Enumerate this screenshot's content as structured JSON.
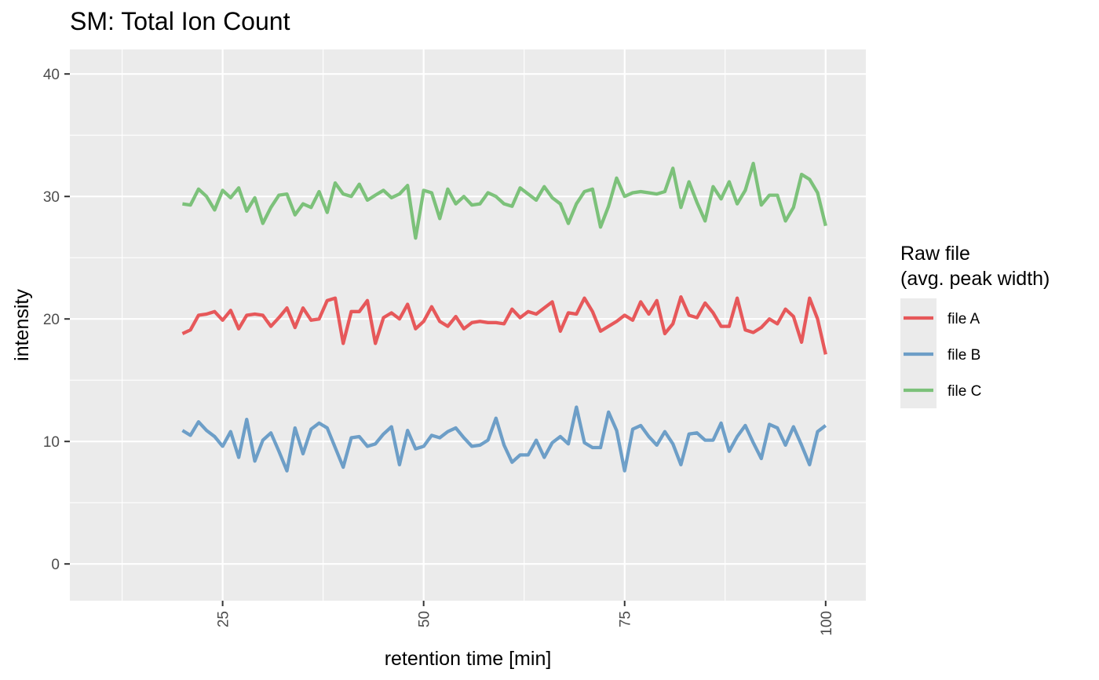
{
  "chart_data": {
    "type": "line",
    "title": "SM: Total Ion Count",
    "xlabel": "retention time [min]",
    "ylabel": "intensity",
    "xlim": [
      6,
      105
    ],
    "ylim": [
      -3,
      42
    ],
    "x_ticks": [
      25,
      50,
      75,
      100
    ],
    "x_tick_labels": [
      "25",
      "50",
      "75",
      "100"
    ],
    "y_ticks": [
      0,
      10,
      20,
      30,
      40
    ],
    "y_tick_labels": [
      "0",
      "10",
      "20",
      "30",
      "40"
    ],
    "grid": true,
    "legend": {
      "title_lines": [
        "Raw file",
        "(avg. peak width)"
      ],
      "position": "right"
    },
    "x": [
      20,
      21,
      22,
      23,
      24,
      25,
      26,
      27,
      28,
      29,
      30,
      31,
      32,
      33,
      34,
      35,
      36,
      37,
      38,
      39,
      40,
      41,
      42,
      43,
      44,
      45,
      46,
      47,
      48,
      49,
      50,
      51,
      52,
      53,
      54,
      55,
      56,
      57,
      58,
      59,
      60,
      61,
      62,
      63,
      64,
      65,
      66,
      67,
      68,
      69,
      70,
      71,
      72,
      73,
      74,
      75,
      76,
      77,
      78,
      79,
      80,
      81,
      82,
      83,
      84,
      85,
      86,
      87,
      88,
      89,
      90,
      91,
      92,
      93,
      94,
      95,
      96,
      97,
      98,
      99,
      100
    ],
    "series": [
      {
        "name": "file A",
        "color": "#e41a1c",
        "values": [
          18.8,
          19.1,
          20.3,
          20.4,
          20.6,
          19.9,
          20.7,
          19.2,
          20.3,
          20.4,
          20.3,
          19.4,
          20.1,
          20.9,
          19.3,
          20.9,
          19.9,
          20.0,
          21.5,
          21.7,
          18.0,
          20.6,
          20.6,
          21.5,
          18.0,
          20.1,
          20.5,
          20.0,
          21.2,
          19.2,
          19.8,
          21.0,
          19.8,
          19.4,
          20.2,
          19.2,
          19.7,
          19.8,
          19.7,
          19.7,
          19.6,
          20.8,
          20.1,
          20.6,
          20.4,
          20.9,
          21.4,
          19.0,
          20.5,
          20.4,
          21.7,
          20.6,
          19.0,
          19.4,
          19.8,
          20.3,
          19.9,
          21.4,
          20.4,
          21.5,
          18.8,
          19.6,
          21.8,
          20.3,
          20.1,
          21.3,
          20.5,
          19.4,
          19.4,
          21.7,
          19.1,
          18.9,
          19.3,
          20.0,
          19.6,
          20.8,
          20.2,
          18.1,
          21.7,
          20.0,
          17.1
        ]
      },
      {
        "name": "file B",
        "color": "#377eb8",
        "values": [
          10.9,
          10.5,
          11.6,
          10.9,
          10.4,
          9.6,
          10.8,
          8.7,
          11.8,
          8.4,
          10.1,
          10.7,
          9.2,
          7.6,
          11.1,
          9.0,
          11.0,
          11.5,
          11.1,
          9.5,
          7.9,
          10.3,
          10.4,
          9.6,
          9.8,
          10.6,
          11.2,
          8.1,
          10.9,
          9.4,
          9.6,
          10.5,
          10.3,
          10.8,
          11.1,
          10.3,
          9.6,
          9.7,
          10.1,
          11.9,
          9.7,
          8.3,
          8.9,
          8.9,
          10.1,
          8.7,
          9.9,
          10.4,
          9.8,
          12.8,
          9.9,
          9.5,
          9.5,
          12.4,
          10.9,
          7.6,
          11.0,
          11.3,
          10.4,
          9.7,
          10.8,
          9.8,
          8.1,
          10.6,
          10.7,
          10.1,
          10.1,
          11.5,
          9.2,
          10.4,
          11.3,
          9.9,
          8.6,
          11.4,
          11.1,
          9.7,
          11.2,
          9.7,
          8.1,
          10.8,
          11.3
        ]
      },
      {
        "name": "file C",
        "color": "#4daf4a",
        "values": [
          29.4,
          29.3,
          30.6,
          30.0,
          28.9,
          30.5,
          29.9,
          30.7,
          28.8,
          29.9,
          27.8,
          29.1,
          30.1,
          30.2,
          28.5,
          29.4,
          29.1,
          30.4,
          28.7,
          31.1,
          30.2,
          30.0,
          31.0,
          29.7,
          30.1,
          30.5,
          29.9,
          30.2,
          30.9,
          26.6,
          30.5,
          30.3,
          28.2,
          30.6,
          29.4,
          30.0,
          29.3,
          29.4,
          30.3,
          30.0,
          29.4,
          29.2,
          30.7,
          30.2,
          29.7,
          30.8,
          29.9,
          29.4,
          27.8,
          29.4,
          30.4,
          30.6,
          27.5,
          29.2,
          31.5,
          30.0,
          30.3,
          30.4,
          30.3,
          30.2,
          30.4,
          32.3,
          29.1,
          31.2,
          29.5,
          28.0,
          30.8,
          29.8,
          31.2,
          29.4,
          30.5,
          32.7,
          29.3,
          30.1,
          30.1,
          28.0,
          29.1,
          31.8,
          31.4,
          30.3,
          27.6
        ]
      }
    ]
  }
}
